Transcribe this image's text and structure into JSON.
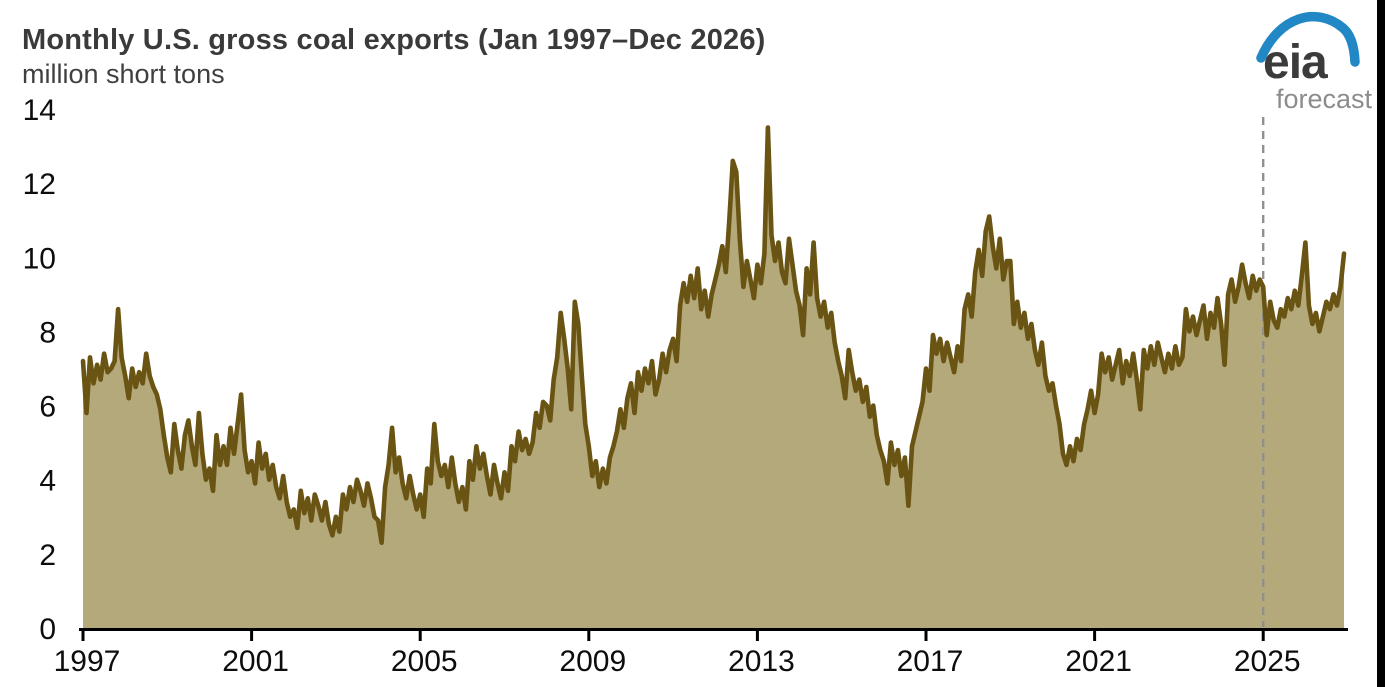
{
  "logo": {
    "text": "eia",
    "text_color": "#3b3b3b",
    "swoosh_color": "#2187c5"
  },
  "chart_data": {
    "type": "area",
    "title": "Monthly U.S. gross coal exports (Jan 1997–Dec 2026)",
    "ylabel": "million short tons",
    "xlabel": "",
    "frequency": "monthly",
    "x_start": "1997-01",
    "x_end": "2026-12",
    "ylim": [
      0,
      14
    ],
    "y_ticks": [
      0,
      2,
      4,
      6,
      8,
      10,
      12,
      14
    ],
    "x_ticks": [
      1997,
      2001,
      2005,
      2009,
      2013,
      2017,
      2021,
      2025
    ],
    "grid": false,
    "legend": "none",
    "forecast_start": "2025-01",
    "forecast_label": "forecast",
    "forecast_line_color": "#8f8f8f",
    "axis_color": "#000000",
    "series": [
      {
        "name": "U.S. gross coal exports",
        "unit": "million short tons",
        "line_color": "#6a5413",
        "fill_color": "#b3a97b",
        "values": [
          7.2,
          5.8,
          7.3,
          6.6,
          7.1,
          6.7,
          7.4,
          6.9,
          7.0,
          7.2,
          8.6,
          7.3,
          6.8,
          6.2,
          7.0,
          6.5,
          6.9,
          6.6,
          7.4,
          6.8,
          6.5,
          6.3,
          5.9,
          5.2,
          4.6,
          4.2,
          5.5,
          4.8,
          4.3,
          5.2,
          5.6,
          4.9,
          4.4,
          5.8,
          4.7,
          4.0,
          4.3,
          3.7,
          5.2,
          4.4,
          4.9,
          4.4,
          5.4,
          4.7,
          5.5,
          6.3,
          4.8,
          4.2,
          4.5,
          3.9,
          5.0,
          4.3,
          4.7,
          4.0,
          4.4,
          3.8,
          3.5,
          4.1,
          3.4,
          3.0,
          3.2,
          2.7,
          3.7,
          3.1,
          3.5,
          2.9,
          3.6,
          3.3,
          2.9,
          3.4,
          2.8,
          2.5,
          3.0,
          2.6,
          3.6,
          3.2,
          3.8,
          3.4,
          4.0,
          3.7,
          3.3,
          3.9,
          3.5,
          3.0,
          2.9,
          2.3,
          3.8,
          4.4,
          5.4,
          4.2,
          4.6,
          3.9,
          3.5,
          4.1,
          3.6,
          3.2,
          3.6,
          3.0,
          4.3,
          3.9,
          5.5,
          4.5,
          4.1,
          4.4,
          3.8,
          4.6,
          3.9,
          3.4,
          3.8,
          3.2,
          4.5,
          4.0,
          4.9,
          4.3,
          4.7,
          4.1,
          3.6,
          4.4,
          3.9,
          3.5,
          4.2,
          3.7,
          4.9,
          4.5,
          5.3,
          4.8,
          5.1,
          4.7,
          5.0,
          5.8,
          5.4,
          6.1,
          6.0,
          5.6,
          6.7,
          7.3,
          8.5,
          7.8,
          7.0,
          5.9,
          8.8,
          8.2,
          6.8,
          5.5,
          4.9,
          4.1,
          4.5,
          3.8,
          4.3,
          3.9,
          4.6,
          4.9,
          5.3,
          5.9,
          5.4,
          6.2,
          6.6,
          5.8,
          6.9,
          6.4,
          7.0,
          6.6,
          7.2,
          6.3,
          6.7,
          7.4,
          6.9,
          7.5,
          7.8,
          7.2,
          8.7,
          9.3,
          8.8,
          9.5,
          8.9,
          9.7,
          8.6,
          9.1,
          8.4,
          9.0,
          9.4,
          9.8,
          10.3,
          9.6,
          11.0,
          12.6,
          12.3,
          10.5,
          9.2,
          9.9,
          9.4,
          8.9,
          9.8,
          9.3,
          10.1,
          13.5,
          10.6,
          9.9,
          10.4,
          9.6,
          9.3,
          10.5,
          9.8,
          9.1,
          8.7,
          7.9,
          9.7,
          9.0,
          10.4,
          8.9,
          8.4,
          8.8,
          8.1,
          8.5,
          7.7,
          7.2,
          6.8,
          6.2,
          7.5,
          6.9,
          6.4,
          6.7,
          6.1,
          6.5,
          5.7,
          6.0,
          5.2,
          4.8,
          4.5,
          3.9,
          5.0,
          4.4,
          4.8,
          4.1,
          4.6,
          3.3,
          4.9,
          5.3,
          5.7,
          6.1,
          7.0,
          6.4,
          7.9,
          7.4,
          7.8,
          7.2,
          7.7,
          7.3,
          6.9,
          7.6,
          7.2,
          8.6,
          9.0,
          8.4,
          9.6,
          10.2,
          9.5,
          10.7,
          11.1,
          10.3,
          9.7,
          10.5,
          9.4,
          9.9,
          9.9,
          8.2,
          8.8,
          8.1,
          8.5,
          7.8,
          8.2,
          7.5,
          7.1,
          7.7,
          6.8,
          6.4,
          6.6,
          6.0,
          5.5,
          4.7,
          4.4,
          4.9,
          4.5,
          5.1,
          4.8,
          5.5,
          5.9,
          6.4,
          5.8,
          6.3,
          7.4,
          6.9,
          7.3,
          6.7,
          7.1,
          7.5,
          6.6,
          7.2,
          6.8,
          7.4,
          6.7,
          5.9,
          7.5,
          7.0,
          7.6,
          7.1,
          7.7,
          7.3,
          6.9,
          7.4,
          7.0,
          7.6,
          7.1,
          7.3,
          8.6,
          8.0,
          8.4,
          7.9,
          8.3,
          8.7,
          7.8,
          8.5,
          8.1,
          8.9,
          8.2,
          7.1,
          9.0,
          9.4,
          8.8,
          9.2,
          9.8,
          9.3,
          8.9,
          9.5,
          9.1,
          9.4,
          9.2,
          7.9,
          8.8,
          8.3,
          8.1,
          8.6,
          8.4,
          8.9,
          8.6,
          9.1,
          8.7,
          9.5,
          10.4,
          8.7,
          8.2,
          8.5,
          8.0,
          8.4,
          8.8,
          8.6,
          9.0,
          8.7,
          9.2,
          10.1
        ]
      }
    ]
  }
}
